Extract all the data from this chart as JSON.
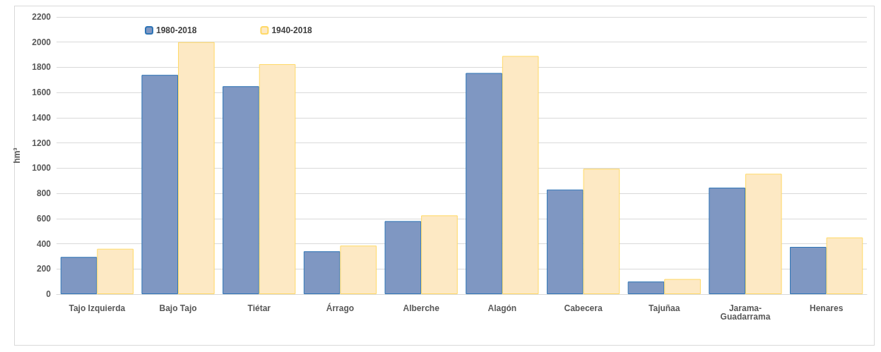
{
  "chart_data": {
    "type": "bar",
    "ylabel": "hm³",
    "categories": [
      "Tajo Izquierda",
      "Bajo Tajo",
      "Tiétar",
      "Árrago",
      "Alberche",
      "Alagón",
      "Cabecera",
      "Tajuñaa",
      "Jarama-Guadarrama",
      "Henares"
    ],
    "series": [
      {
        "name": "1980-2018",
        "color": "#7f97c2",
        "values": [
          295,
          1740,
          1650,
          340,
          580,
          1755,
          830,
          100,
          845,
          375
        ]
      },
      {
        "name": "1940-2018",
        "color": "#fde9c4",
        "values": [
          360,
          2000,
          1825,
          385,
          625,
          1890,
          995,
          120,
          955,
          450
        ]
      }
    ],
    "ylim": [
      0,
      2200
    ],
    "yticks": [
      0,
      200,
      400,
      600,
      800,
      1000,
      1200,
      1400,
      1600,
      1800,
      2000,
      2200
    ],
    "grid": "y",
    "legend": "top left"
  }
}
